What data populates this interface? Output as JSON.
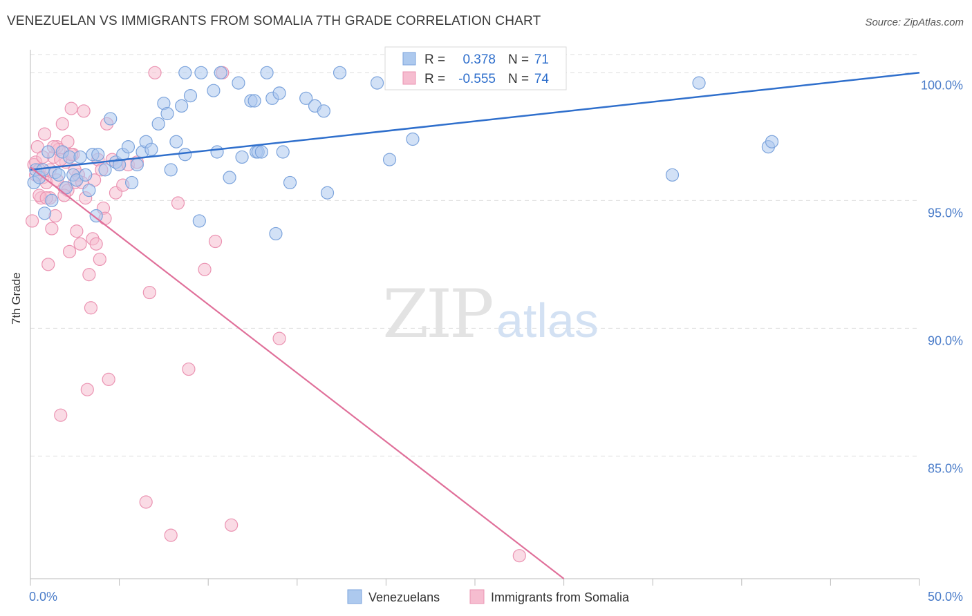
{
  "header": {
    "title": "VENEZUELAN VS IMMIGRANTS FROM SOMALIA 7TH GRADE CORRELATION CHART",
    "source": "Source: ZipAtlas.com"
  },
  "watermark": {
    "zip": "ZIP",
    "atlas": "atlas"
  },
  "colors": {
    "blue_fill": "#adc9ee",
    "blue_stroke": "#7ba3dc",
    "blue_line": "#2f6fcc",
    "pink_fill": "#f6bdd0",
    "pink_stroke": "#eb93b2",
    "pink_line": "#e0709a",
    "tick_label": "#4a7cc9",
    "grid": "#dddddd"
  },
  "stats_box": {
    "rows": [
      {
        "r_label": "R =",
        "r_value": "0.378",
        "n_label": "N =",
        "n_value": "71"
      },
      {
        "r_label": "R =",
        "r_value": "-0.555",
        "n_label": "N =",
        "n_value": "74"
      }
    ]
  },
  "legend": {
    "items": [
      "Venezuelans",
      "Immigrants from Somalia"
    ]
  },
  "chart_data": {
    "type": "scatter",
    "ylabel": "7th Grade",
    "xlim": [
      0,
      50
    ],
    "ylim": [
      80.2,
      100.9
    ],
    "x_tick_labels": [
      "0.0%",
      "50.0%"
    ],
    "y_ticks": [
      85,
      90,
      95,
      100
    ],
    "y_tick_labels": [
      "85.0%",
      "90.0%",
      "95.0%",
      "100.0%"
    ],
    "grid": true,
    "series": [
      {
        "name": "Venezuelans",
        "r": 0.378,
        "n": 71,
        "trend": [
          [
            0,
            96.2
          ],
          [
            50,
            100.0
          ]
        ],
        "points": [
          [
            0.2,
            95.7
          ],
          [
            0.3,
            96.2
          ],
          [
            0.5,
            95.9
          ],
          [
            0.7,
            96.2
          ],
          [
            0.8,
            94.5
          ],
          [
            1.0,
            96.9
          ],
          [
            1.2,
            95.0
          ],
          [
            1.4,
            96.1
          ],
          [
            1.6,
            96.0
          ],
          [
            1.8,
            96.9
          ],
          [
            2.0,
            95.5
          ],
          [
            2.2,
            96.7
          ],
          [
            2.4,
            96.0
          ],
          [
            2.6,
            95.8
          ],
          [
            2.8,
            96.7
          ],
          [
            3.1,
            96.0
          ],
          [
            3.3,
            95.4
          ],
          [
            3.5,
            96.8
          ],
          [
            3.7,
            94.4
          ],
          [
            3.8,
            96.8
          ],
          [
            4.2,
            96.2
          ],
          [
            4.5,
            98.2
          ],
          [
            4.8,
            96.5
          ],
          [
            5.0,
            96.4
          ],
          [
            5.2,
            96.8
          ],
          [
            5.5,
            97.1
          ],
          [
            5.7,
            95.7
          ],
          [
            6.0,
            96.4
          ],
          [
            6.3,
            96.9
          ],
          [
            6.5,
            97.3
          ],
          [
            6.8,
            97.0
          ],
          [
            7.2,
            98.0
          ],
          [
            7.5,
            98.8
          ],
          [
            7.7,
            98.4
          ],
          [
            7.9,
            96.2
          ],
          [
            8.2,
            97.3
          ],
          [
            8.5,
            98.7
          ],
          [
            8.7,
            96.8
          ],
          [
            8.7,
            100.0
          ],
          [
            9.0,
            99.1
          ],
          [
            9.5,
            94.2
          ],
          [
            9.6,
            100.0
          ],
          [
            10.3,
            99.3
          ],
          [
            10.5,
            96.9
          ],
          [
            10.7,
            100.0
          ],
          [
            11.2,
            95.9
          ],
          [
            11.7,
            99.6
          ],
          [
            11.9,
            96.7
          ],
          [
            12.4,
            98.9
          ],
          [
            12.6,
            98.9
          ],
          [
            12.7,
            96.9
          ],
          [
            12.8,
            96.9
          ],
          [
            13.0,
            96.9
          ],
          [
            13.3,
            100.0
          ],
          [
            13.6,
            99.0
          ],
          [
            13.8,
            93.7
          ],
          [
            14.0,
            99.2
          ],
          [
            14.2,
            96.9
          ],
          [
            14.6,
            95.7
          ],
          [
            15.5,
            99.0
          ],
          [
            16.0,
            98.7
          ],
          [
            16.5,
            98.5
          ],
          [
            16.7,
            95.3
          ],
          [
            17.4,
            100.0
          ],
          [
            19.5,
            99.6
          ],
          [
            20.2,
            96.6
          ],
          [
            21.5,
            97.4
          ],
          [
            36.1,
            96.0
          ],
          [
            37.6,
            99.6
          ],
          [
            41.5,
            97.1
          ],
          [
            41.7,
            97.3
          ]
        ]
      },
      {
        "name": "Immigrants from Somalia",
        "r": -0.555,
        "n": 74,
        "trend": [
          [
            0,
            96.3
          ],
          [
            30,
            80.2
          ]
        ],
        "points": [
          [
            0.1,
            94.2
          ],
          [
            0.2,
            96.4
          ],
          [
            0.3,
            96.5
          ],
          [
            0.4,
            97.1
          ],
          [
            0.5,
            96.2
          ],
          [
            0.6,
            95.1
          ],
          [
            0.7,
            95.9
          ],
          [
            0.8,
            97.6
          ],
          [
            0.9,
            95.7
          ],
          [
            1.0,
            92.5
          ],
          [
            1.1,
            95.1
          ],
          [
            1.2,
            93.9
          ],
          [
            1.3,
            96.7
          ],
          [
            1.4,
            94.4
          ],
          [
            1.5,
            97.1
          ],
          [
            1.6,
            97.0
          ],
          [
            1.7,
            86.6
          ],
          [
            1.8,
            98.0
          ],
          [
            1.9,
            95.5
          ],
          [
            2.0,
            96.5
          ],
          [
            2.1,
            95.4
          ],
          [
            2.2,
            93.0
          ],
          [
            2.3,
            98.6
          ],
          [
            2.4,
            96.8
          ],
          [
            2.5,
            95.7
          ],
          [
            2.6,
            93.8
          ],
          [
            2.7,
            96.0
          ],
          [
            2.8,
            93.3
          ],
          [
            2.9,
            95.7
          ],
          [
            3.0,
            98.5
          ],
          [
            3.1,
            95.1
          ],
          [
            3.2,
            87.6
          ],
          [
            3.3,
            92.1
          ],
          [
            3.4,
            90.8
          ],
          [
            3.5,
            93.5
          ],
          [
            3.6,
            95.8
          ],
          [
            3.7,
            93.3
          ],
          [
            3.8,
            96.6
          ],
          [
            3.9,
            92.7
          ],
          [
            4.0,
            96.2
          ],
          [
            4.1,
            94.7
          ],
          [
            4.2,
            94.3
          ],
          [
            4.3,
            98.0
          ],
          [
            4.4,
            88.0
          ],
          [
            4.6,
            96.6
          ],
          [
            4.8,
            95.3
          ],
          [
            5.0,
            96.4
          ],
          [
            5.2,
            95.6
          ],
          [
            5.5,
            96.4
          ],
          [
            6.0,
            96.5
          ],
          [
            6.5,
            83.2
          ],
          [
            6.7,
            91.4
          ],
          [
            7.0,
            100.0
          ],
          [
            7.9,
            81.9
          ],
          [
            8.3,
            94.9
          ],
          [
            8.9,
            88.4
          ],
          [
            9.8,
            92.3
          ],
          [
            10.4,
            93.4
          ],
          [
            10.8,
            100.0
          ],
          [
            11.3,
            82.3
          ],
          [
            14.0,
            89.6
          ],
          [
            27.5,
            81.1
          ],
          [
            0.3,
            96.0
          ],
          [
            0.5,
            95.2
          ],
          [
            0.7,
            96.7
          ],
          [
            0.9,
            95.1
          ],
          [
            1.1,
            96.2
          ],
          [
            1.3,
            97.1
          ],
          [
            1.5,
            95.8
          ],
          [
            1.7,
            96.6
          ],
          [
            1.9,
            95.2
          ],
          [
            2.1,
            97.3
          ],
          [
            2.3,
            96.8
          ],
          [
            2.5,
            96.2
          ]
        ]
      }
    ]
  }
}
